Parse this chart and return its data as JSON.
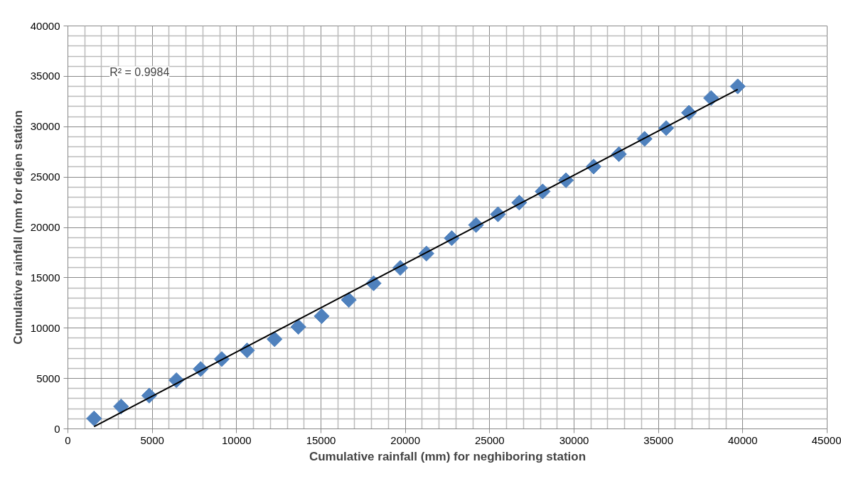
{
  "chart_data": {
    "type": "scatter",
    "xlabel": "Cumulative rainfall (mm) for neghiboring station",
    "ylabel": "Cumulative rainfall (mm for dejen station",
    "x": [
      1550,
      3150,
      4820,
      6430,
      7870,
      9120,
      10620,
      12250,
      13660,
      15040,
      16650,
      18120,
      19700,
      21250,
      22750,
      24190,
      25490,
      26750,
      28140,
      29520,
      31160,
      32660,
      34180,
      35460,
      36810,
      38120,
      39700
    ],
    "series": [
      {
        "color": "#4f81bd",
        "marker": "diamond",
        "values": [
          1030,
          2220,
          3300,
          4830,
          5940,
          6930,
          7790,
          8900,
          10130,
          11190,
          12800,
          14450,
          15980,
          17400,
          18930,
          20240,
          21300,
          22460,
          23570,
          24680,
          26040,
          27270,
          28790,
          29860,
          31380,
          32840,
          34000
        ]
      },
      {
        "type": "line",
        "color": "#000000",
        "line_style": "solid",
        "x": [
          1550,
          39700
        ],
        "values": [
          220,
          33700
        ]
      }
    ],
    "annotations": [
      "R² = 0.9984"
    ],
    "xlim": [
      0,
      45000
    ],
    "xticks": [
      0,
      5000,
      10000,
      15000,
      20000,
      25000,
      30000,
      35000,
      40000,
      45000
    ],
    "ylim": [
      0,
      40000
    ],
    "yticks": [
      0,
      5000,
      10000,
      15000,
      20000,
      25000,
      30000,
      35000,
      40000
    ],
    "grid": true
  }
}
